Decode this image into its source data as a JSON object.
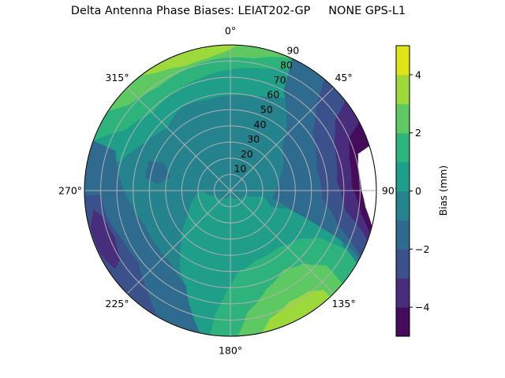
{
  "chart_data": {
    "type": "contour",
    "projection": "polar",
    "title": "Delta Antenna Phase Biases: LEIAT202-GP     NONE GPS-L1",
    "theta_direction": "clockwise",
    "theta_zero": "north",
    "theta_tick_labels": [
      "0°",
      "45°",
      "90°",
      "135°",
      "180°",
      "225°",
      "270°",
      "315°"
    ],
    "theta_ticks": [
      0,
      45,
      90,
      135,
      180,
      225,
      270,
      315
    ],
    "r_ticks": [
      10,
      20,
      30,
      40,
      50,
      60,
      70,
      80,
      90
    ],
    "r_tick_labels": [
      "10",
      "20",
      "30",
      "40",
      "50",
      "60",
      "70",
      "80",
      "90"
    ],
    "rlim": [
      0,
      90
    ],
    "grid": true,
    "colormap": "viridis",
    "levels": [
      -5,
      -4,
      -3,
      -2,
      -1,
      0,
      1,
      2,
      3,
      4,
      5
    ],
    "level_colors": [
      "#450c5c",
      "#472d7b",
      "#3b518b",
      "#2f6b8e",
      "#25838e",
      "#1f9e89",
      "#2eb37c",
      "#5ec962",
      "#9dd93b",
      "#dfe318"
    ],
    "nodata_color": "#ffffff",
    "colorbar": {
      "label": "Bias (mm)",
      "ticks": [
        -4,
        -2,
        0,
        2,
        4
      ],
      "tick_labels": [
        "−4",
        "−2",
        "0",
        "2",
        "4"
      ],
      "range": [
        -5,
        5
      ]
    },
    "regions": [
      {
        "band": [
          -1,
          0
        ],
        "points": "disk"
      },
      {
        "band": [
          0,
          1
        ],
        "points": [
          [
            280,
            90
          ],
          [
            285,
            70
          ],
          [
            300,
            60
          ],
          [
            315,
            55
          ],
          [
            330,
            60
          ],
          [
            345,
            58
          ],
          [
            0,
            59
          ],
          [
            15,
            60
          ],
          [
            30,
            66
          ],
          [
            40,
            75
          ],
          [
            45,
            90
          ],
          [
            20,
            90
          ],
          [
            0,
            90
          ],
          [
            340,
            90
          ],
          [
            310,
            90
          ]
        ]
      },
      {
        "band": [
          0,
          1
        ],
        "points": [
          [
            270,
            18
          ],
          [
            250,
            10
          ],
          [
            180,
            3
          ],
          [
            110,
            10
          ],
          [
            100,
            20
          ],
          [
            112,
            27
          ],
          [
            104,
            45
          ],
          [
            108,
            65
          ],
          [
            118,
            80
          ],
          [
            125,
            90
          ],
          [
            150,
            90
          ],
          [
            175,
            90
          ],
          [
            192,
            90
          ],
          [
            205,
            65
          ],
          [
            212,
            58
          ],
          [
            222,
            45
          ],
          [
            240,
            30
          ]
        ]
      },
      {
        "band": [
          1,
          2
        ],
        "points": [
          [
            290,
            90
          ],
          [
            300,
            75
          ],
          [
            315,
            68
          ],
          [
            330,
            70
          ],
          [
            345,
            72
          ],
          [
            0,
            75
          ],
          [
            15,
            78
          ],
          [
            30,
            85
          ],
          [
            35,
            90
          ],
          [
            10,
            90
          ],
          [
            340,
            90
          ],
          [
            315,
            90
          ]
        ]
      },
      {
        "band": [
          1,
          2
        ],
        "points": [
          [
            188,
            90
          ],
          [
            187,
            77
          ],
          [
            182,
            62
          ],
          [
            175,
            51
          ],
          [
            160,
            46
          ],
          [
            140,
            46
          ],
          [
            125,
            52
          ],
          [
            118,
            62
          ],
          [
            117,
            80
          ],
          [
            120,
            90
          ],
          [
            150,
            90
          ]
        ]
      },
      {
        "band": [
          2,
          3
        ],
        "points": [
          [
            303,
            90
          ],
          [
            310,
            82
          ],
          [
            325,
            78
          ],
          [
            340,
            80
          ],
          [
            355,
            82
          ],
          [
            10,
            83
          ],
          [
            20,
            88
          ],
          [
            25,
            90
          ],
          [
            0,
            90
          ],
          [
            330,
            90
          ]
        ]
      },
      {
        "band": [
          2,
          3
        ],
        "points": [
          [
            177,
            90
          ],
          [
            172,
            76
          ],
          [
            160,
            65
          ],
          [
            146,
            59
          ],
          [
            135,
            64
          ],
          [
            128,
            75
          ],
          [
            130,
            90
          ],
          [
            155,
            90
          ]
        ]
      },
      {
        "band": [
          3,
          4
        ],
        "points": [
          [
            322,
            90
          ],
          [
            328,
            86
          ],
          [
            340,
            82
          ],
          [
            350,
            83
          ],
          [
            358,
            86
          ],
          [
            3,
            90
          ],
          [
            340,
            90
          ]
        ]
      },
      {
        "band": [
          3,
          4
        ],
        "points": [
          [
            168,
            91
          ],
          [
            163,
            83
          ],
          [
            152,
            78
          ],
          [
            142,
            79
          ],
          [
            137,
            84
          ],
          [
            137,
            90
          ],
          [
            150,
            93
          ]
        ]
      },
      {
        "band": [
          -2,
          -1
        ],
        "points": [
          [
            25,
            90
          ],
          [
            28,
            70
          ],
          [
            35,
            60
          ],
          [
            50,
            42
          ],
          [
            75,
            32
          ],
          [
            100,
            26
          ],
          [
            108,
            40
          ],
          [
            112,
            60
          ],
          [
            115,
            80
          ],
          [
            118,
            90
          ],
          [
            70,
            90
          ]
        ]
      },
      {
        "band": [
          -2,
          -1
        ],
        "points": [
          [
            290,
            90
          ],
          [
            289,
            75
          ],
          [
            275,
            68
          ],
          [
            262,
            62
          ],
          [
            248,
            57
          ],
          [
            232,
            57
          ],
          [
            220,
            58
          ],
          [
            205,
            65
          ],
          [
            192,
            90
          ],
          [
            240,
            90
          ]
        ]
      },
      {
        "band": [
          -2,
          -1
        ],
        "points": [
          [
            283,
            38
          ],
          [
            292,
            44
          ],
          [
            290,
            53
          ],
          [
            279,
            53
          ],
          [
            275,
            45
          ]
        ]
      },
      {
        "band": [
          -3,
          -2
        ],
        "points": [
          [
            40,
            90
          ],
          [
            45,
            75
          ],
          [
            55,
            62
          ],
          [
            75,
            55
          ],
          [
            95,
            57
          ],
          [
            108,
            70
          ],
          [
            117,
            90
          ],
          [
            80,
            90
          ]
        ]
      },
      {
        "band": [
          -3,
          -2
        ],
        "points": [
          [
            268,
            90
          ],
          [
            268,
            80
          ],
          [
            258,
            78
          ],
          [
            245,
            73
          ],
          [
            232,
            72
          ],
          [
            220,
            80
          ],
          [
            210,
            90
          ],
          [
            240,
            90
          ]
        ]
      },
      {
        "band": [
          -4,
          -3
        ],
        "points": [
          [
            52,
            90
          ],
          [
            56,
            78
          ],
          [
            66,
            70
          ],
          [
            85,
            66
          ],
          [
            100,
            72
          ],
          [
            110,
            90
          ],
          [
            80,
            90
          ]
        ]
      },
      {
        "band": [
          -4,
          -3
        ],
        "points": [
          [
            262,
            85
          ],
          [
            258,
            80
          ],
          [
            248,
            77
          ],
          [
            238,
            80
          ],
          [
            236,
            86
          ],
          [
            244,
            89
          ],
          [
            255,
            89
          ]
        ]
      },
      {
        "band": [
          -5,
          -4
        ],
        "points": [
          [
            62,
            90
          ],
          [
            66,
            80
          ],
          [
            75,
            76
          ],
          [
            88,
            75
          ],
          [
            100,
            82
          ],
          [
            107,
            90
          ],
          [
            85,
            90
          ]
        ]
      },
      {
        "band": "nodata",
        "points": [
          [
            72,
            91
          ],
          [
            74,
            82
          ],
          [
            80,
            80
          ],
          [
            90,
            81
          ],
          [
            97,
            84
          ],
          [
            104,
            90
          ],
          [
            90,
            92
          ]
        ]
      }
    ]
  }
}
